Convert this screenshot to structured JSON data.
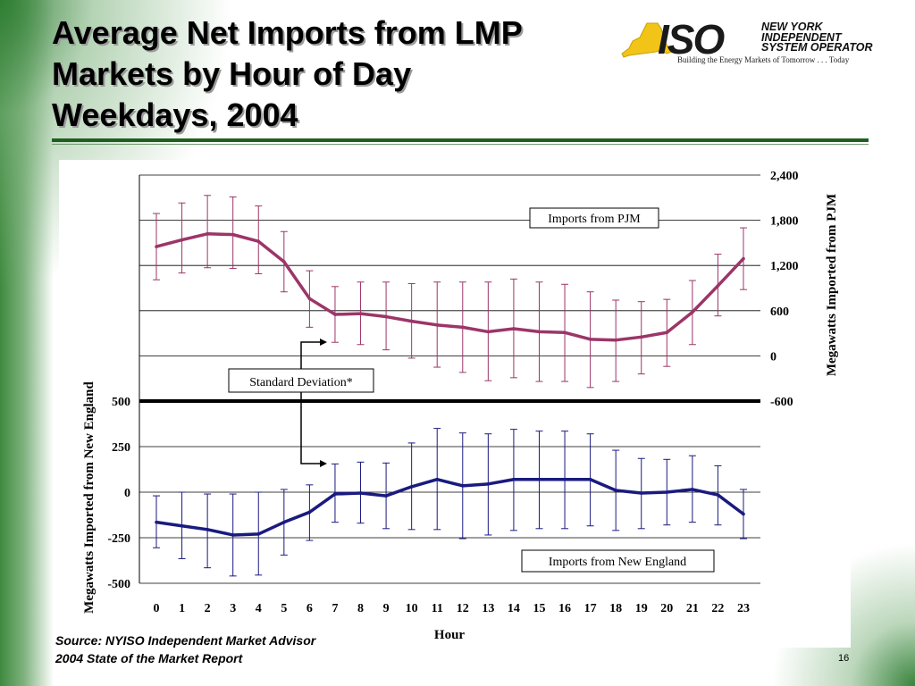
{
  "slide": {
    "title_lines": [
      "Average Net Imports from LMP",
      "Markets by Hour of Day",
      "Weekdays, 2004"
    ],
    "source_lines": [
      "Source: NYISO Independent Market Advisor",
      "2004 State of the Market Report"
    ],
    "page_number": "16"
  },
  "logo": {
    "mark": "ISO",
    "name_lines": [
      "NEW YORK",
      "INDEPENDENT",
      "SYSTEM OPERATOR"
    ],
    "tagline": "Building the Energy Markets of Tomorrow . . . Today",
    "icon": "new-york-state-icon"
  },
  "chart_data": {
    "type": "line",
    "title": "",
    "xlabel": "Hour",
    "categories": [
      "0",
      "1",
      "2",
      "3",
      "4",
      "5",
      "6",
      "7",
      "8",
      "9",
      "10",
      "11",
      "12",
      "13",
      "14",
      "15",
      "16",
      "17",
      "18",
      "19",
      "20",
      "21",
      "22",
      "23"
    ],
    "y_right": {
      "label": "Megawatts Imported from PJM",
      "range": [
        -600,
        2400
      ],
      "ticks": [
        "2,400",
        "1,800",
        "1,200",
        "600",
        "0",
        "-600"
      ]
    },
    "y_left": {
      "label": "Megawatts Imported from New England",
      "range": [
        -500,
        500
      ],
      "ticks": [
        "500",
        "250",
        "0",
        "-250",
        "-500"
      ]
    },
    "series": [
      {
        "name": "Imports from PJM",
        "axis": "right",
        "color": "#9c3568",
        "values": [
          1450,
          1540,
          1620,
          1610,
          1520,
          1250,
          760,
          550,
          560,
          520,
          460,
          410,
          380,
          320,
          360,
          320,
          310,
          220,
          210,
          250,
          310,
          580,
          930,
          1290
        ],
        "error_low": [
          1010,
          1100,
          1170,
          1160,
          1090,
          850,
          380,
          180,
          150,
          80,
          -30,
          -150,
          -220,
          -330,
          -290,
          -340,
          -340,
          -420,
          -340,
          -240,
          -140,
          150,
          530,
          880
        ],
        "error_high": [
          1890,
          2030,
          2130,
          2110,
          1990,
          1650,
          1130,
          920,
          980,
          980,
          960,
          980,
          980,
          980,
          1020,
          980,
          950,
          850,
          740,
          720,
          750,
          1000,
          1350,
          1700
        ]
      },
      {
        "name": "Imports from New England",
        "axis": "left",
        "color": "#1a1a80",
        "values": [
          -165,
          -185,
          -205,
          -235,
          -230,
          -165,
          -110,
          -10,
          -5,
          -20,
          30,
          70,
          35,
          45,
          70,
          70,
          70,
          70,
          10,
          -5,
          0,
          15,
          -15,
          -120
        ],
        "error_low": [
          -305,
          -365,
          -415,
          -460,
          -455,
          -345,
          -265,
          -165,
          -170,
          -200,
          -205,
          -205,
          -255,
          -235,
          -210,
          -200,
          -200,
          -185,
          -210,
          -200,
          -180,
          -165,
          -180,
          -255
        ],
        "error_high": [
          -20,
          0,
          -10,
          -10,
          0,
          15,
          40,
          155,
          165,
          160,
          270,
          350,
          325,
          320,
          345,
          335,
          335,
          320,
          230,
          185,
          180,
          200,
          145,
          15
        ]
      }
    ],
    "annotations": [
      "Imports from PJM",
      "Standard Deviation*",
      "Imports from New England"
    ]
  }
}
